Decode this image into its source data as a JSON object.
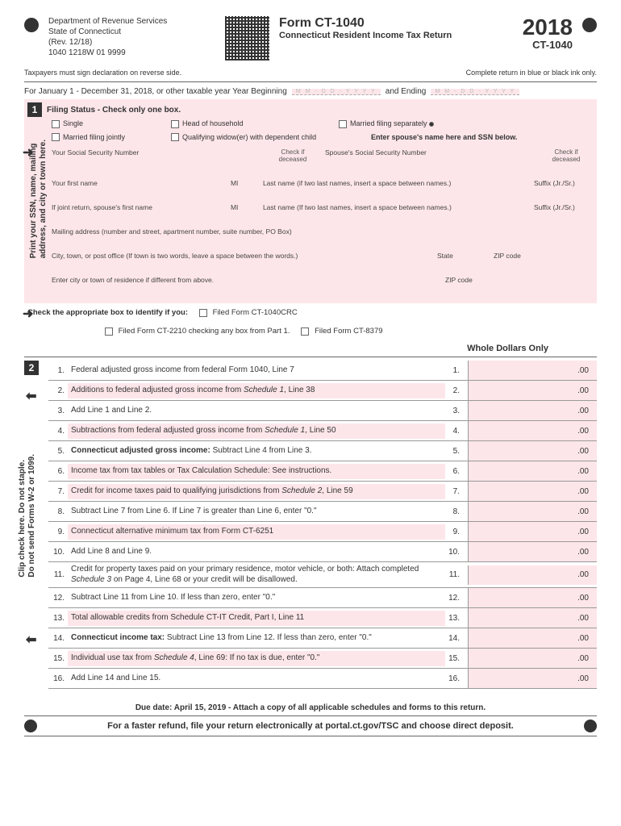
{
  "header": {
    "dept_line1": "Department of Revenue Services",
    "dept_line2": "State of Connecticut",
    "rev": "(Rev. 12/18)",
    "code": "1040 1218W 01 9999",
    "form_code": "Form CT-1040",
    "form_title": "Connecticut Resident Income Tax Return",
    "year": "2018",
    "year_code": "CT-1040"
  },
  "subheader": {
    "left": "Taxpayers must sign declaration on reverse side.",
    "right": "Complete return in blue or black ink only."
  },
  "dateline": {
    "text1": "For January 1 - December 31, 2018, or other taxable year Year Beginning",
    "text2": "and Ending",
    "placeholder": "M M - D D - Y Y Y Y"
  },
  "section1": {
    "title": "Filing Status - Check only one box.",
    "statuses": {
      "single": "Single",
      "hoh": "Head of household",
      "mfs": "Married filing separately",
      "mfj": "Married filing jointly",
      "qw": "Qualifying widow(er) with dependent child"
    },
    "spouse_note": "Enter spouse's name here and SSN below.",
    "ssn_label": "Your Social Security Number",
    "spouse_ssn_label": "Spouse's Social Security Number",
    "deceased": "Check if deceased",
    "first_name": "Your first name",
    "mi": "MI",
    "last_name": "Last name (if two last names, insert a space between names.)",
    "suffix": "Suffix (Jr./Sr.)",
    "spouse_first": "If joint return, spouse's first name",
    "spouse_last": "Last name (If two last names, insert a space between names.)",
    "mailing": "Mailing address (number and street, apartment number, suite number, PO Box)",
    "city": "City, town, or post office (If town is two words, leave a space between the words.)",
    "state": "State",
    "zip": "ZIP code",
    "residence": "Enter city or town of residence if different from above.",
    "vtext1": "Print your SSN, name, mailing",
    "vtext2": "address, and city or town here."
  },
  "checkboxes": {
    "title": "Check the appropriate box to identify if you:",
    "crc": "Filed Form CT-1040CRC",
    "ct2210": "Filed Form CT-2210 checking any box from Part 1.",
    "ct8379": "Filed Form CT-8379"
  },
  "section2": {
    "header": "Whole Dollars Only",
    "vtext1": "Clip check here. Do not staple.",
    "vtext2": "Do not send Forms W-2 or 1099.",
    "lines": [
      {
        "n": "1.",
        "d": "Federal adjusted gross income from federal Form 1040, Line 7",
        "n2": "1.",
        "c": ".00"
      },
      {
        "n": "2.",
        "d": "Additions to federal adjusted gross income from Schedule 1, Line 38",
        "n2": "2.",
        "c": ".00",
        "pink": true,
        "italic": "Schedule 1"
      },
      {
        "n": "3.",
        "d": "Add Line 1 and Line 2.",
        "n2": "3.",
        "c": ".00"
      },
      {
        "n": "4.",
        "d": "Subtractions from federal adjusted gross income from Schedule 1, Line 50",
        "n2": "4.",
        "c": ".00",
        "pink": true,
        "italic": "Schedule 1"
      },
      {
        "n": "5.",
        "d": "Connecticut adjusted gross income: Subtract Line 4 from Line 3.",
        "n2": "5.",
        "c": ".00",
        "bold": "Connecticut adjusted gross income:"
      },
      {
        "n": "6.",
        "d": "Income tax from tax tables or Tax Calculation Schedule: See instructions.",
        "n2": "6.",
        "c": ".00",
        "pink": true
      },
      {
        "n": "7.",
        "d": "Credit for income taxes paid to qualifying jurisdictions from Schedule 2, Line 59",
        "n2": "7.",
        "c": ".00",
        "pink": true,
        "italic": "Schedule 2"
      },
      {
        "n": "8.",
        "d": "Subtract Line 7 from Line 6. If Line 7 is greater than Line 6, enter \"0.\"",
        "n2": "8.",
        "c": ".00"
      },
      {
        "n": "9.",
        "d": "Connecticut alternative minimum tax from Form CT-6251",
        "n2": "9.",
        "c": ".00",
        "pink": true
      },
      {
        "n": "10.",
        "d": "Add Line 8 and Line 9.",
        "n2": "10.",
        "c": ".00"
      },
      {
        "n": "11.",
        "d": "Credit for property taxes paid on your primary residence, motor vehicle, or both: Attach completed Schedule 3 on Page 4, Line 68 or your credit will be disallowed.",
        "n2": "11.",
        "c": ".00",
        "italic": "Schedule 3"
      },
      {
        "n": "12.",
        "d": "Subtract Line 11 from Line 10. If less than zero, enter \"0.\"",
        "n2": "12.",
        "c": ".00"
      },
      {
        "n": "13.",
        "d": "Total allowable credits from Schedule CT-IT Credit, Part I, Line 11",
        "n2": "13.",
        "c": ".00",
        "pink": true
      },
      {
        "n": "14.",
        "d": "Connecticut income tax: Subtract Line 13 from Line 12. If less than zero, enter \"0.\"",
        "n2": "14.",
        "c": ".00",
        "bold": "Connecticut income tax:"
      },
      {
        "n": "15.",
        "d": "Individual use tax from Schedule 4, Line 69: If no tax is due, enter \"0.\"",
        "n2": "15.",
        "c": ".00",
        "pink": true,
        "italic": "Schedule 4"
      },
      {
        "n": "16.",
        "d": "Add Line 14 and Line 15.",
        "n2": "16.",
        "c": ".00"
      }
    ]
  },
  "footer": {
    "due": "Due date:  April 15, 2019  -  Attach a copy of all applicable schedules and forms to this return.",
    "fast": "For a faster refund, file your return electronically at portal.ct.gov/TSC and choose direct deposit."
  }
}
